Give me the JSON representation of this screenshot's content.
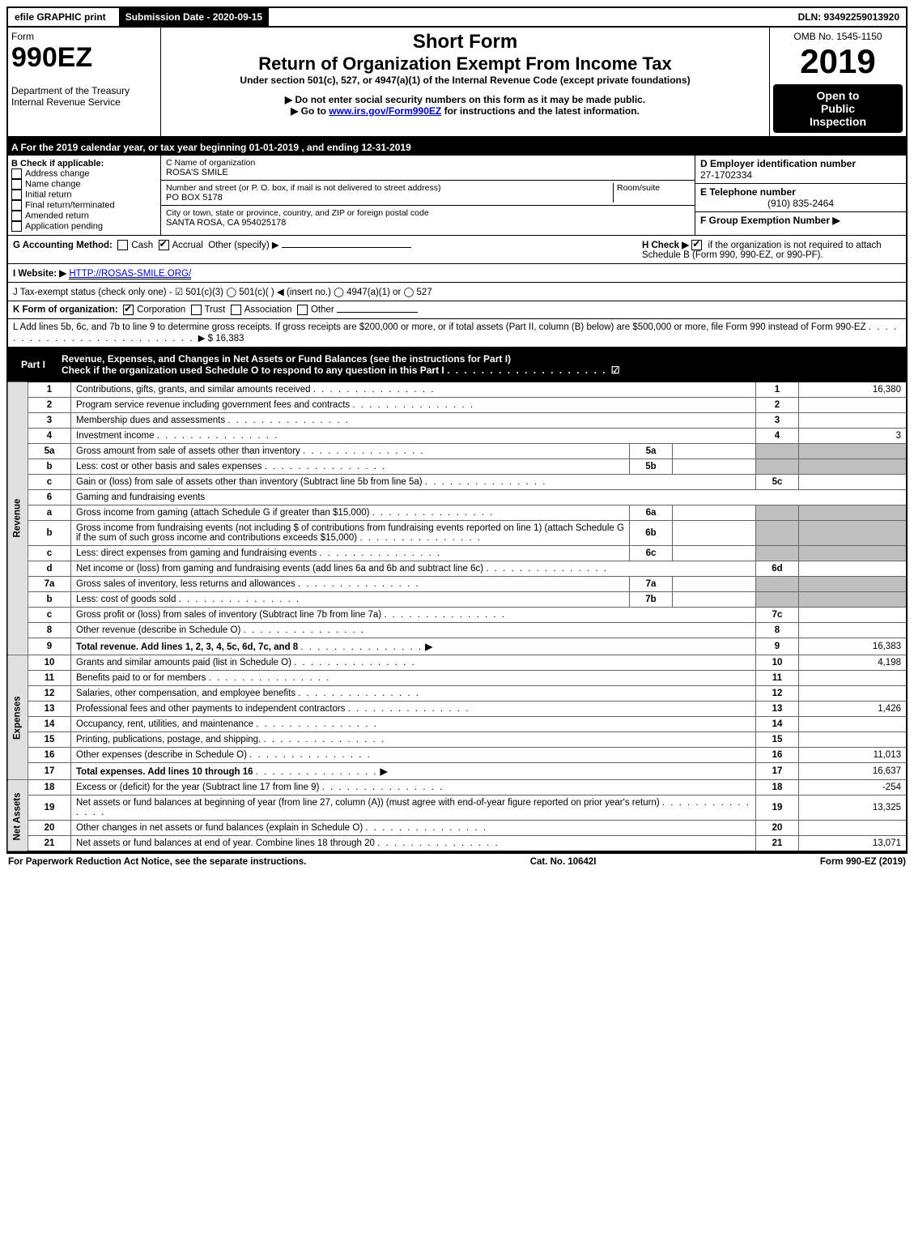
{
  "top": {
    "efile": "efile GRAPHIC print",
    "submission": "Submission Date - 2020-09-15",
    "dln": "DLN: 93492259013920"
  },
  "header": {
    "form_word": "Form",
    "form_number": "990EZ",
    "dept": "Department of the Treasury",
    "irs": "Internal Revenue Service",
    "short_form": "Short Form",
    "title": "Return of Organization Exempt From Income Tax",
    "under": "Under section 501(c), 527, or 4947(a)(1) of the Internal Revenue Code (except private foundations)",
    "no_ssn": "▶ Do not enter social security numbers on this form as it may be made public.",
    "goto": "▶ Go to www.irs.gov/Form990EZ for instructions and the latest information.",
    "goto_link": "www.irs.gov/Form990EZ",
    "omb": "OMB No. 1545-1150",
    "year": "2019",
    "open1": "Open to",
    "open2": "Public",
    "open3": "Inspection"
  },
  "rowA": "A For the 2019 calendar year, or tax year beginning 01-01-2019 , and ending 12-31-2019",
  "colB": {
    "title": "B Check if applicable:",
    "items": [
      "Address change",
      "Name change",
      "Initial return",
      "Final return/terminated",
      "Amended return",
      "Application pending"
    ]
  },
  "colC": {
    "name_label": "C Name of organization",
    "name": "ROSA'S SMILE",
    "street_label": "Number and street (or P. O. box, if mail is not delivered to street address)",
    "room_label": "Room/suite",
    "street": "PO BOX 5178",
    "city_label": "City or town, state or province, country, and ZIP or foreign postal code",
    "city": "SANTA ROSA, CA  954025178"
  },
  "colD": {
    "ein_label": "D Employer identification number",
    "ein": "27-1702334",
    "phone_label": "E Telephone number",
    "phone": "(910) 835-2464",
    "group_label": "F Group Exemption Number   ▶"
  },
  "rowG": {
    "label": "G Accounting Method:",
    "cash": "Cash",
    "accrual": "Accrual",
    "other": "Other (specify) ▶",
    "h_label": "H Check ▶",
    "h_text": "if the organization is not required to attach Schedule B (Form 990, 990-EZ, or 990-PF)."
  },
  "rowI": {
    "label": "I Website: ▶",
    "url": "HTTP://ROSAS-SMILE.ORG/"
  },
  "rowJ": "J Tax-exempt status (check only one) -  ☑ 501(c)(3)  ◯ 501(c)(  ) ◀ (insert no.)  ◯ 4947(a)(1) or  ◯ 527",
  "rowK": {
    "label": "K Form of organization:",
    "opts": [
      "Corporation",
      "Trust",
      "Association",
      "Other"
    ]
  },
  "rowL": {
    "text": "L Add lines 5b, 6c, and 7b to line 9 to determine gross receipts. If gross receipts are $200,000 or more, or if total assets (Part II, column (B) below) are $500,000 or more, file Form 990 instead of Form 990-EZ",
    "amount_prefix": "▶ $",
    "amount": "16,383"
  },
  "part1": {
    "label": "Part I",
    "title": "Revenue, Expenses, and Changes in Net Assets or Fund Balances (see the instructions for Part I)",
    "sub": "Check if the organization used Schedule O to respond to any question in this Part I",
    "checked": "☑"
  },
  "sections": {
    "revenue": "Revenue",
    "expenses": "Expenses",
    "netassets": "Net Assets"
  },
  "lines": [
    {
      "n": "1",
      "d": "Contributions, gifts, grants, and similar amounts received",
      "code": "1",
      "val": "16,380"
    },
    {
      "n": "2",
      "d": "Program service revenue including government fees and contracts",
      "code": "2",
      "val": ""
    },
    {
      "n": "3",
      "d": "Membership dues and assessments",
      "code": "3",
      "val": ""
    },
    {
      "n": "4",
      "d": "Investment income",
      "code": "4",
      "val": "3"
    },
    {
      "n": "5a",
      "d": "Gross amount from sale of assets other than inventory",
      "sub": "5a",
      "subval": ""
    },
    {
      "n": "b",
      "d": "Less: cost or other basis and sales expenses",
      "sub": "5b",
      "subval": ""
    },
    {
      "n": "c",
      "d": "Gain or (loss) from sale of assets other than inventory (Subtract line 5b from line 5a)",
      "code": "5c",
      "val": ""
    },
    {
      "n": "6",
      "d": "Gaming and fundraising events",
      "span": true
    },
    {
      "n": "a",
      "d": "Gross income from gaming (attach Schedule G if greater than $15,000)",
      "sub": "6a",
      "subval": ""
    },
    {
      "n": "b",
      "d": "Gross income from fundraising events (not including $            of contributions from fundraising events reported on line 1) (attach Schedule G if the sum of such gross income and contributions exceeds $15,000)",
      "sub": "6b",
      "subval": ""
    },
    {
      "n": "c",
      "d": "Less: direct expenses from gaming and fundraising events",
      "sub": "6c",
      "subval": ""
    },
    {
      "n": "d",
      "d": "Net income or (loss) from gaming and fundraising events (add lines 6a and 6b and subtract line 6c)",
      "code": "6d",
      "val": ""
    },
    {
      "n": "7a",
      "d": "Gross sales of inventory, less returns and allowances",
      "sub": "7a",
      "subval": ""
    },
    {
      "n": "b",
      "d": "Less: cost of goods sold",
      "sub": "7b",
      "subval": ""
    },
    {
      "n": "c",
      "d": "Gross profit or (loss) from sales of inventory (Subtract line 7b from line 7a)",
      "code": "7c",
      "val": ""
    },
    {
      "n": "8",
      "d": "Other revenue (describe in Schedule O)",
      "code": "8",
      "val": ""
    },
    {
      "n": "9",
      "d": "Total revenue. Add lines 1, 2, 3, 4, 5c, 6d, 7c, and 8",
      "code": "9",
      "val": "16,383",
      "bold": true,
      "arrow": true
    }
  ],
  "exp_lines": [
    {
      "n": "10",
      "d": "Grants and similar amounts paid (list in Schedule O)",
      "code": "10",
      "val": "4,198"
    },
    {
      "n": "11",
      "d": "Benefits paid to or for members",
      "code": "11",
      "val": ""
    },
    {
      "n": "12",
      "d": "Salaries, other compensation, and employee benefits",
      "code": "12",
      "val": ""
    },
    {
      "n": "13",
      "d": "Professional fees and other payments to independent contractors",
      "code": "13",
      "val": "1,426"
    },
    {
      "n": "14",
      "d": "Occupancy, rent, utilities, and maintenance",
      "code": "14",
      "val": ""
    },
    {
      "n": "15",
      "d": "Printing, publications, postage, and shipping.",
      "code": "15",
      "val": ""
    },
    {
      "n": "16",
      "d": "Other expenses (describe in Schedule O)",
      "code": "16",
      "val": "11,013"
    },
    {
      "n": "17",
      "d": "Total expenses. Add lines 10 through 16",
      "code": "17",
      "val": "16,637",
      "bold": true,
      "arrow": true
    }
  ],
  "na_lines": [
    {
      "n": "18",
      "d": "Excess or (deficit) for the year (Subtract line 17 from line 9)",
      "code": "18",
      "val": "-254"
    },
    {
      "n": "19",
      "d": "Net assets or fund balances at beginning of year (from line 27, column (A)) (must agree with end-of-year figure reported on prior year's return)",
      "code": "19",
      "val": "13,325"
    },
    {
      "n": "20",
      "d": "Other changes in net assets or fund balances (explain in Schedule O)",
      "code": "20",
      "val": ""
    },
    {
      "n": "21",
      "d": "Net assets or fund balances at end of year. Combine lines 18 through 20",
      "code": "21",
      "val": "13,071"
    }
  ],
  "footer": {
    "left": "For Paperwork Reduction Act Notice, see the separate instructions.",
    "center": "Cat. No. 10642I",
    "right": "Form 990-EZ (2019)"
  }
}
